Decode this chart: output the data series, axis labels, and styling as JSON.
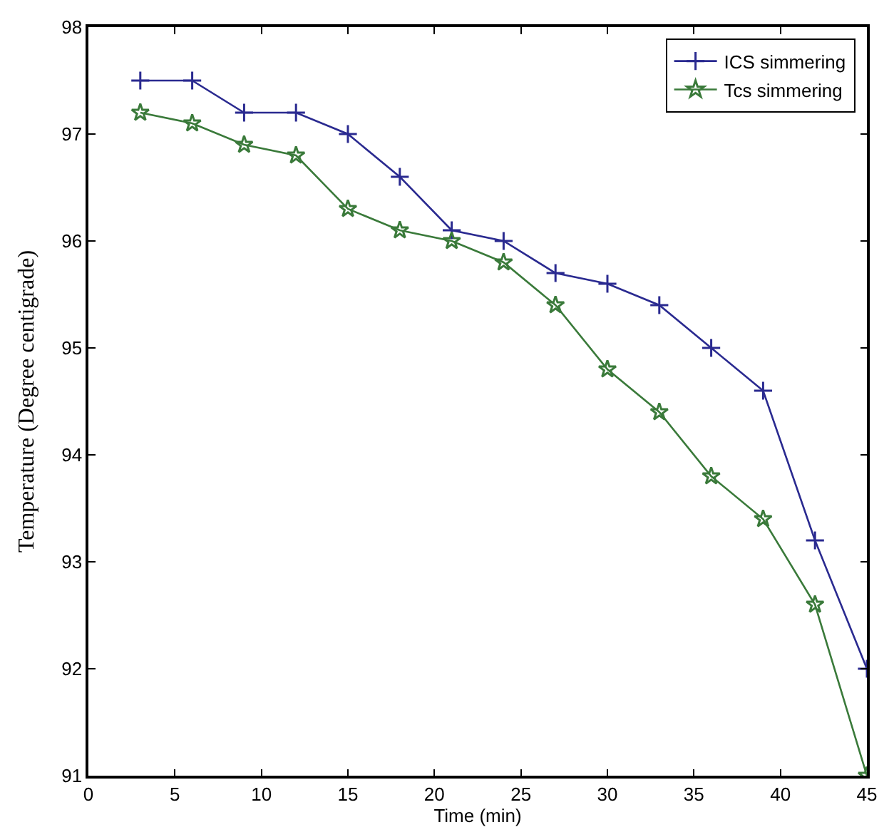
{
  "chart_data": {
    "type": "line",
    "xlabel": "Time (min)",
    "ylabel": "Temperature (Degree centigrade)",
    "x": [
      3,
      6,
      9,
      12,
      15,
      18,
      21,
      24,
      27,
      30,
      33,
      36,
      39,
      42,
      45
    ],
    "series": [
      {
        "name": "ICS simmering",
        "color": "#2a2a90",
        "marker": "cross",
        "values": [
          97.5,
          97.5,
          97.2,
          97.2,
          97.0,
          96.6,
          96.1,
          96.0,
          95.7,
          95.6,
          95.4,
          95.0,
          94.6,
          93.2,
          92.0
        ]
      },
      {
        "name": "Tcs simmering",
        "color": "#3a7a3a",
        "marker": "star",
        "values": [
          97.2,
          97.1,
          96.9,
          96.8,
          96.3,
          96.1,
          96.0,
          95.8,
          95.4,
          94.8,
          94.4,
          93.8,
          93.4,
          92.6,
          91.0
        ]
      }
    ],
    "xlim": [
      0,
      45
    ],
    "xticks": [
      0,
      5,
      10,
      15,
      20,
      25,
      30,
      35,
      40,
      45
    ],
    "ylim": [
      91,
      98
    ],
    "yticks": [
      91,
      92,
      93,
      94,
      95,
      96,
      97,
      98
    ],
    "legend": "top right",
    "line_style": "solid"
  }
}
